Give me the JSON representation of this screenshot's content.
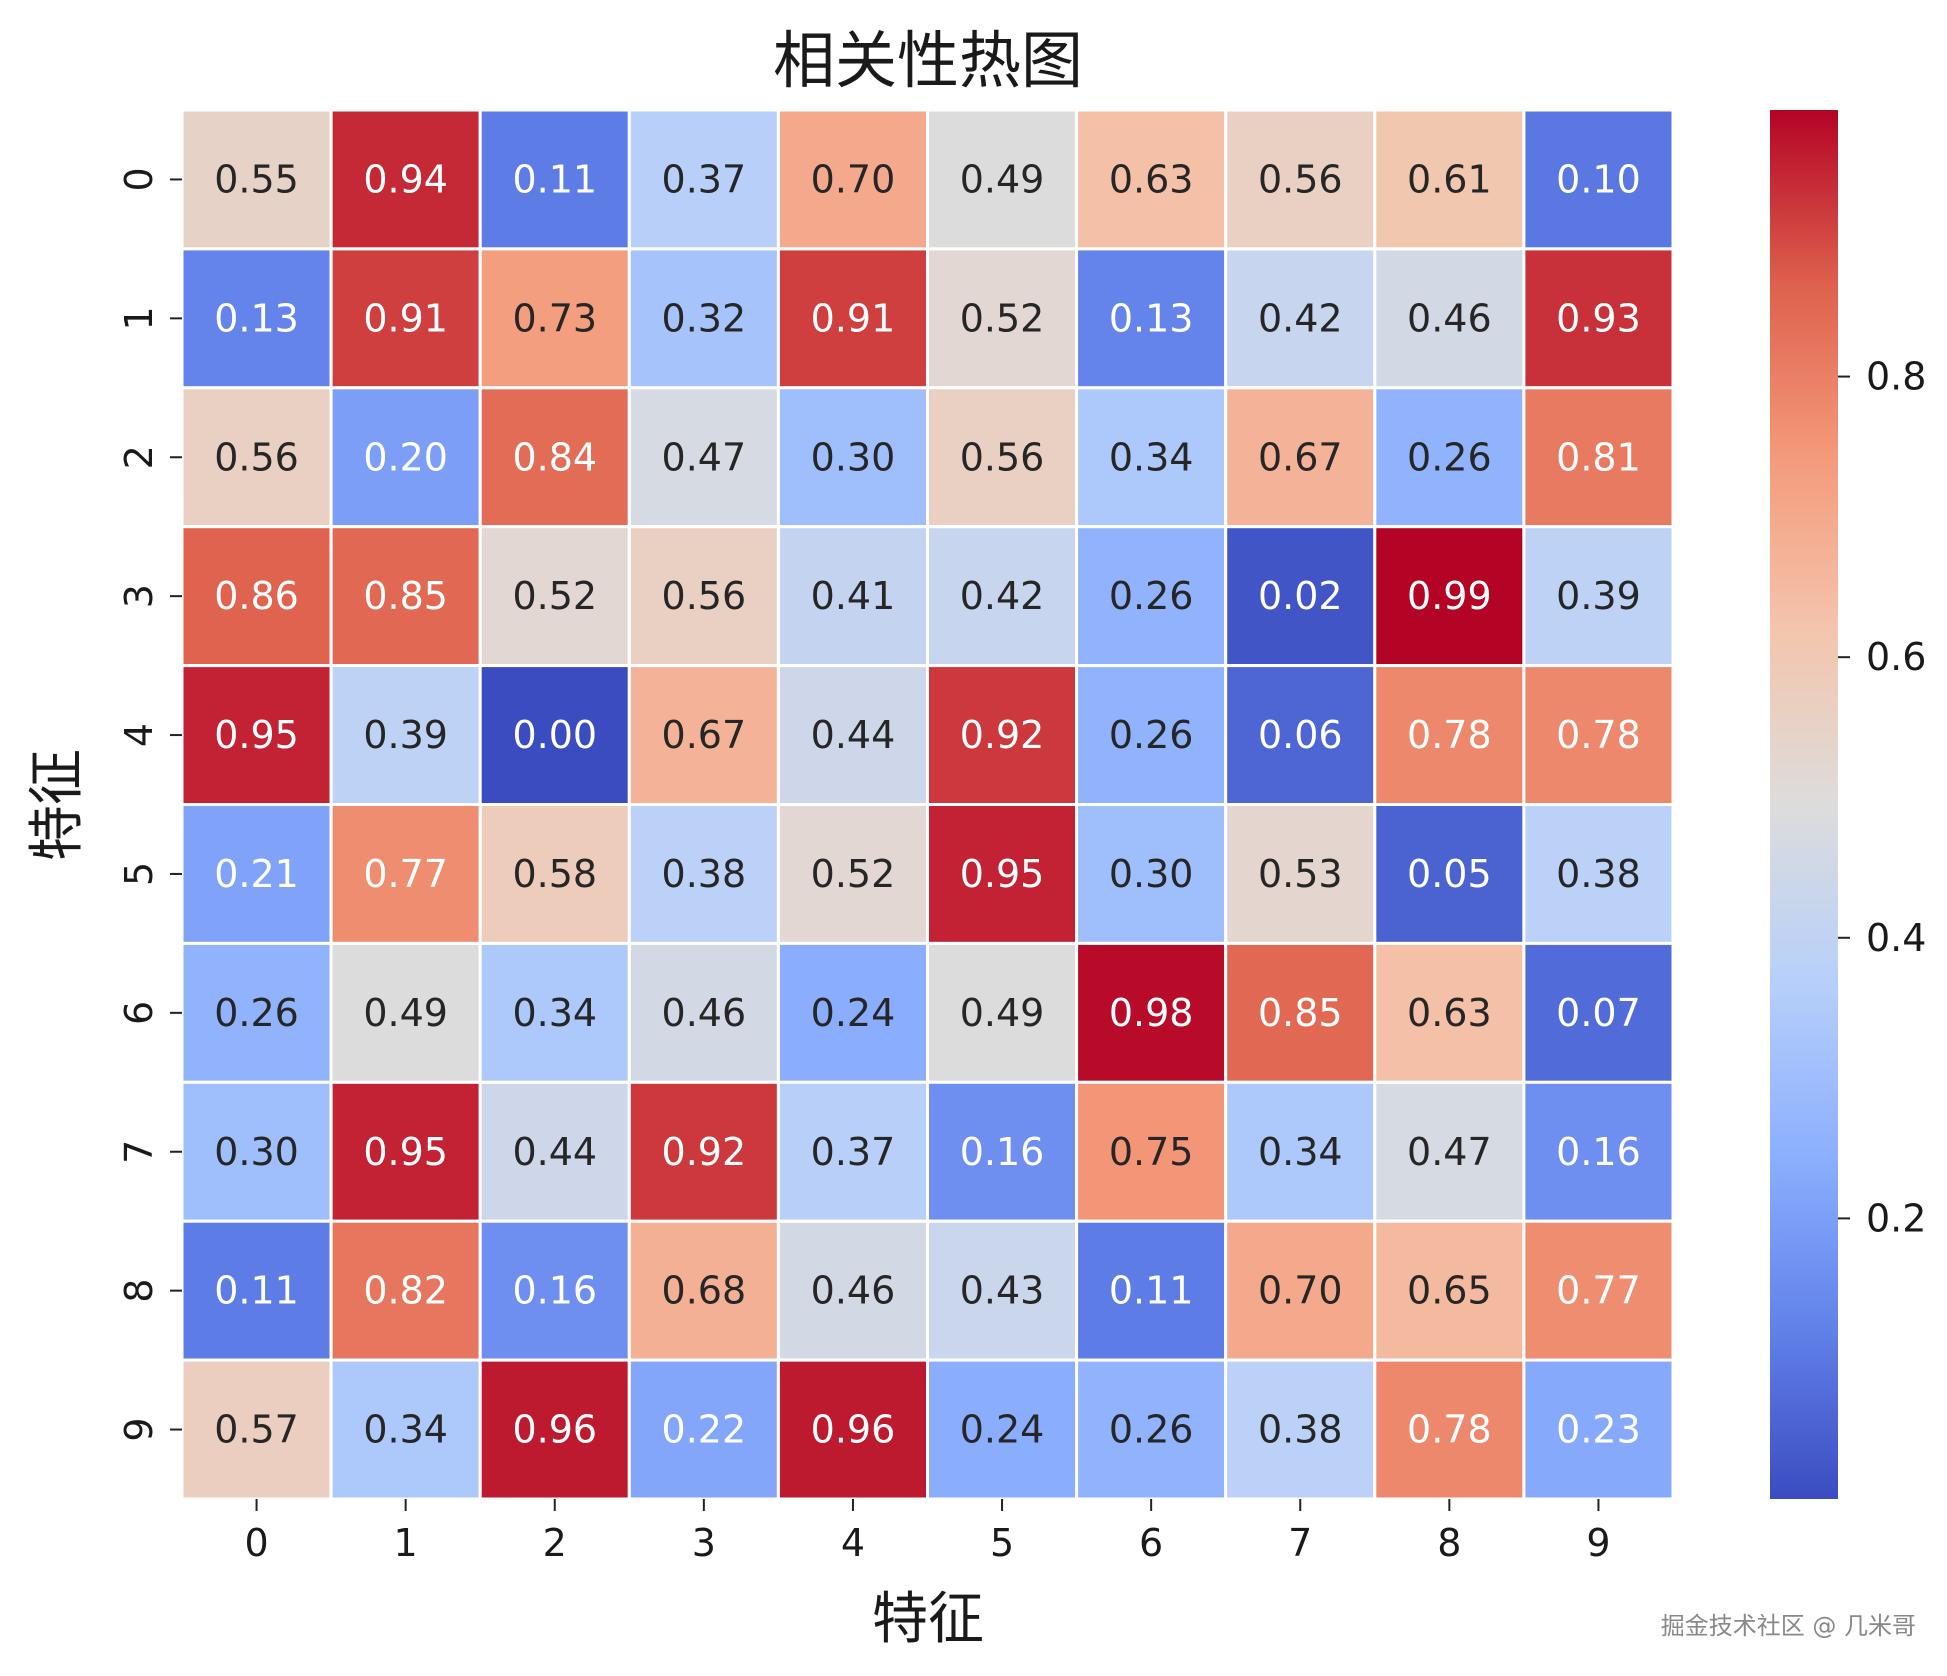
{
  "chart_data": {
    "type": "heatmap",
    "title": "相关性热图",
    "xlabel": "特征",
    "ylabel": "特征",
    "x_categories": [
      "0",
      "1",
      "2",
      "3",
      "4",
      "5",
      "6",
      "7",
      "8",
      "9"
    ],
    "y_categories": [
      "0",
      "1",
      "2",
      "3",
      "4",
      "5",
      "6",
      "7",
      "8",
      "9"
    ],
    "values": [
      [
        0.55,
        0.94,
        0.11,
        0.37,
        0.7,
        0.49,
        0.63,
        0.56,
        0.61,
        0.1
      ],
      [
        0.13,
        0.91,
        0.73,
        0.32,
        0.91,
        0.52,
        0.13,
        0.42,
        0.46,
        0.93
      ],
      [
        0.56,
        0.2,
        0.84,
        0.47,
        0.3,
        0.56,
        0.34,
        0.67,
        0.26,
        0.81
      ],
      [
        0.86,
        0.85,
        0.52,
        0.56,
        0.41,
        0.42,
        0.26,
        0.02,
        0.99,
        0.39
      ],
      [
        0.95,
        0.39,
        0.0,
        0.67,
        0.44,
        0.92,
        0.26,
        0.06,
        0.78,
        0.78
      ],
      [
        0.21,
        0.77,
        0.58,
        0.38,
        0.52,
        0.95,
        0.3,
        0.53,
        0.05,
        0.38
      ],
      [
        0.26,
        0.49,
        0.34,
        0.46,
        0.24,
        0.49,
        0.98,
        0.85,
        0.63,
        0.07
      ],
      [
        0.3,
        0.95,
        0.44,
        0.92,
        0.37,
        0.16,
        0.75,
        0.34,
        0.47,
        0.16
      ],
      [
        0.11,
        0.82,
        0.16,
        0.68,
        0.46,
        0.43,
        0.11,
        0.7,
        0.65,
        0.77
      ],
      [
        0.57,
        0.34,
        0.96,
        0.22,
        0.96,
        0.24,
        0.26,
        0.38,
        0.78,
        0.23
      ]
    ],
    "annotations": true,
    "colormap": "coolwarm",
    "color_range": [
      0.0,
      0.99
    ],
    "colorbar_ticks": [
      "0.2",
      "0.4",
      "0.6",
      "0.8"
    ],
    "colorbar_tick_values": [
      0.2,
      0.4,
      0.6,
      0.8
    ],
    "cell_border_color": "#ffffff"
  },
  "watermark": "掘金技术社区 @ 几米哥"
}
